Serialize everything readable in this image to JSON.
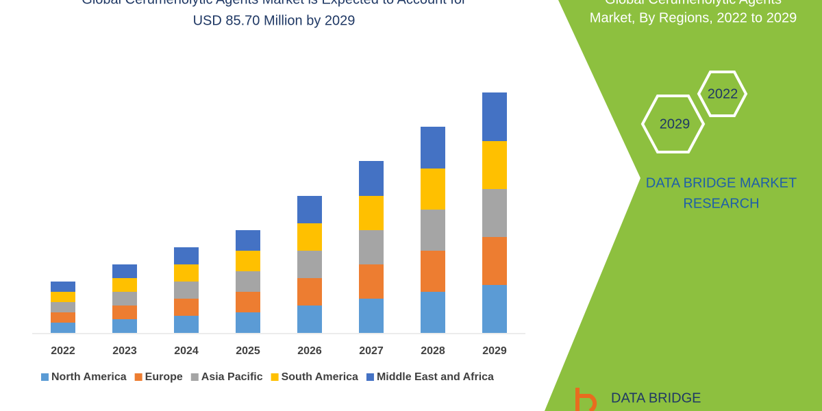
{
  "chart_data": {
    "type": "stacked-bar",
    "title": [
      "Global Cerumenolytic Agents Market is Expected to Account for",
      "USD 85.70 Million by 2029"
    ],
    "categories": [
      "2022",
      "2023",
      "2024",
      "2025",
      "2026",
      "2027",
      "2028",
      "2029"
    ],
    "series": [
      {
        "name": "North America",
        "color": "#5b9bd5",
        "values": [
          15,
          20,
          25,
          30,
          40,
          50,
          60,
          70
        ]
      },
      {
        "name": "Europe",
        "color": "#ed7d31",
        "values": [
          15,
          20,
          25,
          30,
          40,
          50,
          60,
          70
        ]
      },
      {
        "name": "Asia Pacific",
        "color": "#a5a5a5",
        "values": [
          15,
          20,
          25,
          30,
          40,
          50,
          60,
          70
        ]
      },
      {
        "name": "South America",
        "color": "#ffc000",
        "values": [
          15,
          20,
          25,
          30,
          40,
          50,
          60,
          70
        ]
      },
      {
        "name": "Middle East and Africa",
        "color": "#4472c4",
        "values": [
          15,
          20,
          25,
          30,
          40,
          51,
          61,
          71
        ]
      }
    ]
  },
  "panel": {
    "title": [
      "Global Cerumenolytic Agents",
      "Market, By Regions, 2022 to 2029"
    ],
    "badges": [
      "2022",
      "2029"
    ],
    "brand": [
      "DATA BRIDGE MARKET",
      "RESEARCH"
    ],
    "logo": "DATA BRIDGE"
  }
}
